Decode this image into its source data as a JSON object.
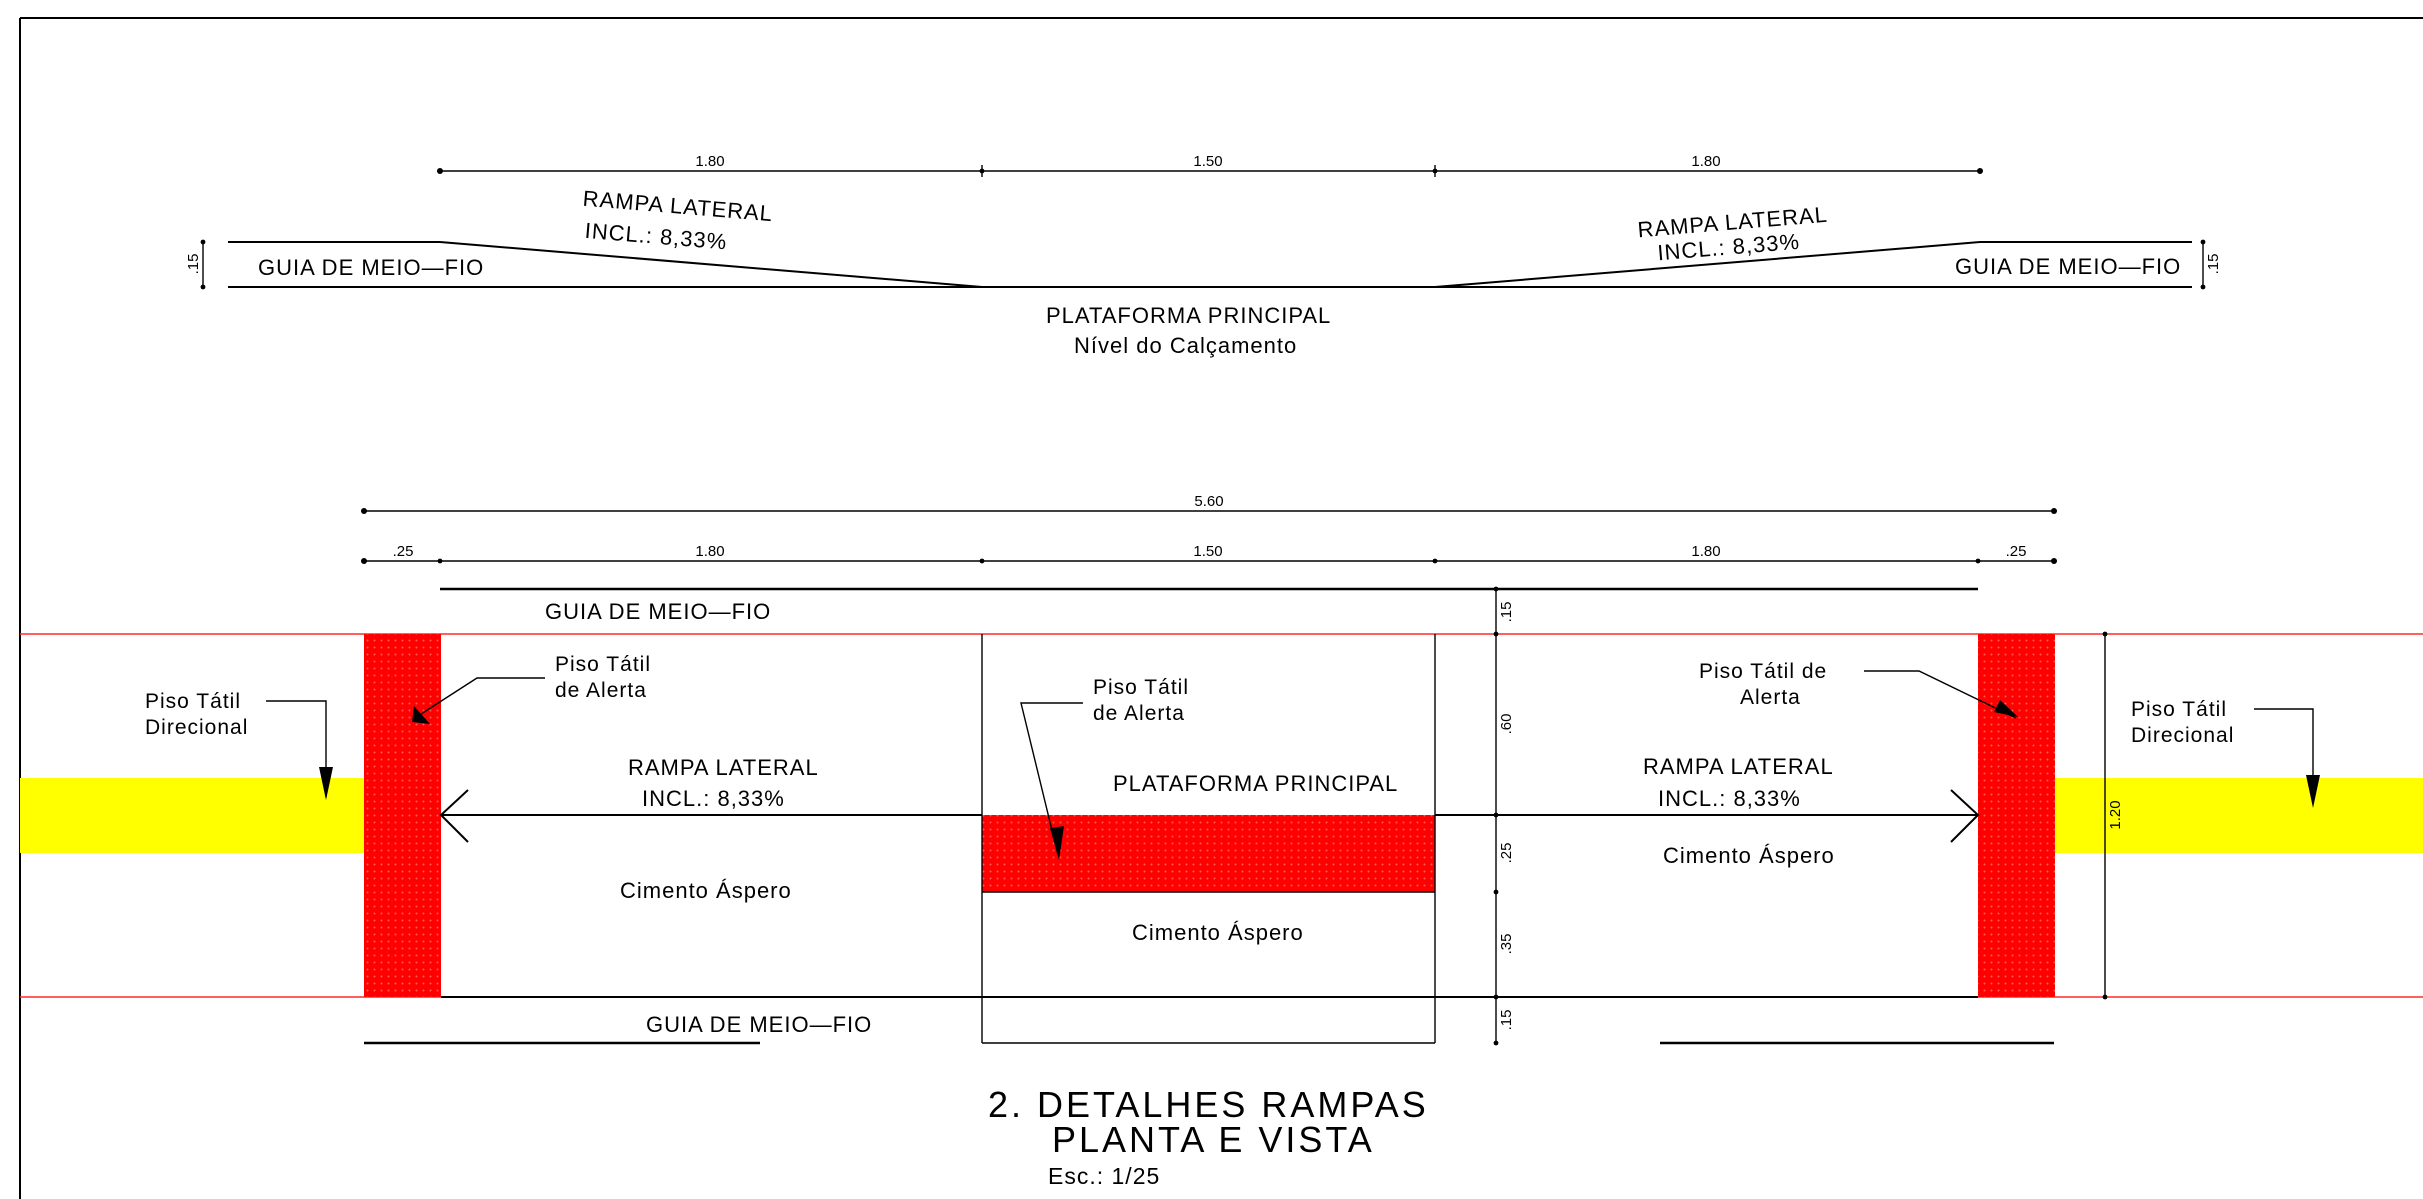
{
  "colors": {
    "alert_tile": "#ff0000",
    "directional_tile": "#ffff00",
    "boundary_line": "#ff2a2a",
    "ink": "#000000"
  },
  "elevation": {
    "dims": [
      "1.80",
      "1.50",
      "1.80"
    ],
    "height_left": ".15",
    "height_right": ".15",
    "ramp_left": {
      "line1": "RAMPA LATERAL",
      "line2": "INCL.: 8,33%"
    },
    "ramp_right": {
      "line1": "RAMPA LATERAL",
      "line2": "INCL.: 8,33%"
    },
    "curb_left": "GUIA DE MEIO—FIO",
    "curb_right": "GUIA DE MEIO—FIO",
    "platform": "PLATAFORMA PRINCIPAL",
    "platform_sub": "Nível do Calçamento"
  },
  "plan": {
    "overall_dim": "5.60",
    "dims": [
      ".25",
      "1.80",
      "1.50",
      "1.80",
      ".25"
    ],
    "curb_top": "GUIA DE MEIO—FIO",
    "curb_bottom": "GUIA DE MEIO—FIO",
    "vert_dims": [
      ".15",
      ".60",
      ".25",
      ".35",
      ".15"
    ],
    "width_dim": "1.20",
    "tactile_dir_left": {
      "line1": "Piso Tátil",
      "line2": "Direcional"
    },
    "tactile_dir_right": {
      "line1": "Piso Tátil",
      "line2": "Direcional"
    },
    "alert_left": {
      "line1": "Piso Tátil",
      "line2": "de Alerta"
    },
    "alert_center": {
      "line1": "Piso Tátil",
      "line2": "de Alerta"
    },
    "alert_right": {
      "line1": "Piso Tátil de",
      "line2": "Alerta"
    },
    "ramp_left": {
      "line1": "RAMPA LATERAL",
      "line2": "INCL.: 8,33%"
    },
    "ramp_right": {
      "line1": "RAMPA LATERAL",
      "line2": "INCL.: 8,33%"
    },
    "platform": "PLATAFORMA PRINCIPAL",
    "surface_left": "Cimento Áspero",
    "surface_center": "Cimento Áspero",
    "surface_right": "Cimento Áspero"
  },
  "title": {
    "line1": "2. DETALHES RAMPAS",
    "line2": "PLANTA E VISTA",
    "scale": "Esc.: 1/25"
  }
}
